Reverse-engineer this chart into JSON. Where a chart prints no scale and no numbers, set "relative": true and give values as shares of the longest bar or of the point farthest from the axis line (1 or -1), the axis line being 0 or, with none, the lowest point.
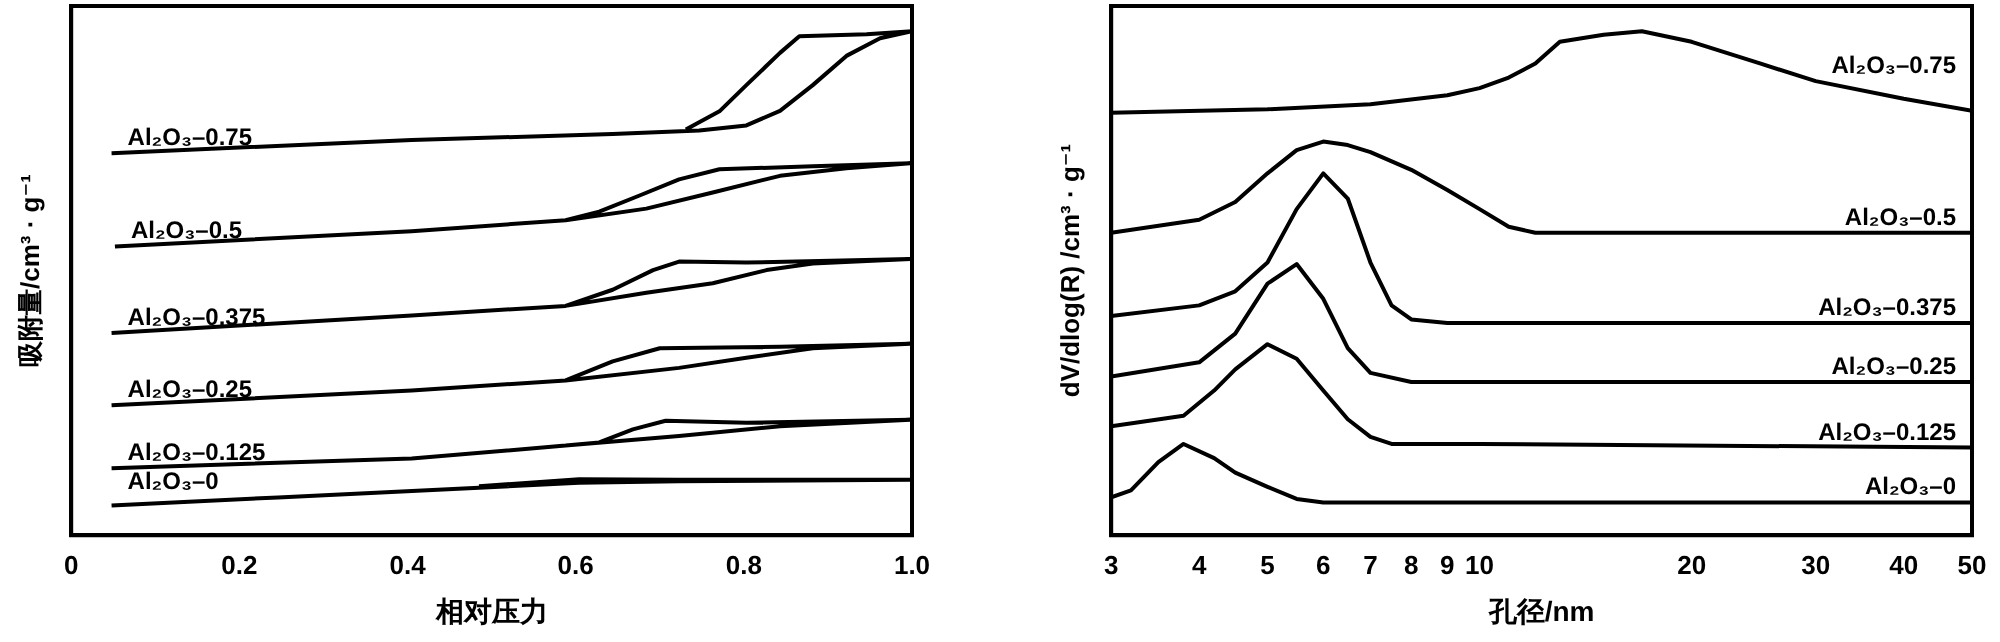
{
  "chart_data": [
    {
      "type": "line",
      "relative": true,
      "xlabel": "相对压力",
      "ylabel": "吸附量/cm³ · g⁻¹",
      "xlim": [
        0,
        1
      ],
      "xticks": [
        0,
        0.2,
        0.4,
        0.6,
        0.8,
        {
          "value": 1,
          "label": "1.0"
        }
      ],
      "grid": false,
      "legend": false,
      "series": [
        {
          "name": "Al₂O₃–0.75",
          "color": "#000000",
          "x": [
            0.048,
            0.405,
            0.644,
            0.747,
            0.803,
            0.843,
            0.882,
            0.922,
            0.962,
            1.0,
            0.946,
            0.866,
            0.843,
            0.803,
            0.771,
            0.731
          ],
          "values": [
            0.758,
            0.784,
            0.796,
            0.803,
            0.813,
            0.842,
            0.893,
            0.951,
            0.986,
            1.0,
            0.994,
            0.99,
            0.957,
            0.893,
            0.841,
            0.805
          ]
        },
        {
          "name": "Al₂O₃–0.5",
          "color": "#000000",
          "x": [
            0.052,
            0.405,
            0.588,
            0.684,
            0.763,
            0.843,
            0.922,
            0.998,
            0.882,
            0.771,
            0.723,
            0.676,
            0.628,
            0.588
          ],
          "values": [
            0.573,
            0.603,
            0.625,
            0.648,
            0.68,
            0.713,
            0.728,
            0.738,
            0.732,
            0.726,
            0.706,
            0.674,
            0.642,
            0.625
          ]
        },
        {
          "name": "Al₂O₃–0.375",
          "color": "#000000",
          "x": [
            0.048,
            0.405,
            0.588,
            0.684,
            0.763,
            0.827,
            0.882,
            0.998,
            0.803,
            0.723,
            0.692,
            0.644,
            0.588
          ],
          "values": [
            0.401,
            0.436,
            0.455,
            0.481,
            0.5,
            0.526,
            0.539,
            0.548,
            0.541,
            0.543,
            0.526,
            0.487,
            0.455
          ]
        },
        {
          "name": "Al₂O₃–0.25",
          "color": "#000000",
          "x": [
            0.048,
            0.405,
            0.588,
            0.723,
            0.803,
            0.882,
            0.998,
            0.843,
            0.7,
            0.644,
            0.588
          ],
          "values": [
            0.258,
            0.287,
            0.307,
            0.332,
            0.352,
            0.371,
            0.38,
            0.374,
            0.371,
            0.345,
            0.307
          ]
        },
        {
          "name": "Al₂O₃–0.125",
          "color": "#000000",
          "x": [
            0.048,
            0.405,
            0.588,
            0.723,
            0.843,
            0.998,
            0.803,
            0.707,
            0.668,
            0.628,
            0.588
          ],
          "values": [
            0.133,
            0.152,
            0.178,
            0.197,
            0.216,
            0.229,
            0.223,
            0.227,
            0.21,
            0.184,
            0.178
          ]
        },
        {
          "name": "Al₂O₃–0",
          "color": "#000000",
          "x": [
            0.048,
            0.246,
            0.485,
            0.604,
            0.723,
            0.998,
            0.723,
            0.604,
            0.485
          ],
          "values": [
            0.059,
            0.075,
            0.094,
            0.104,
            0.107,
            0.11,
            0.11,
            0.111,
            0.097
          ]
        }
      ]
    },
    {
      "type": "line",
      "relative": true,
      "log": "x",
      "xlabel": "孔径/nm",
      "ylabel": "dV/dlog(R) /cm³ · g⁻¹",
      "xlim": [
        3,
        50
      ],
      "xticks": [
        3,
        4,
        5,
        6,
        7,
        8,
        9,
        10,
        20,
        30,
        40,
        50
      ],
      "grid": false,
      "legend": false,
      "series": [
        {
          "name": "Al₂O₃–0.75",
          "color": "#000000",
          "x": [
            3,
            5,
            7,
            9,
            10,
            11,
            12,
            13,
            15,
            17,
            20,
            25,
            30,
            40,
            50
          ],
          "values": [
            0.838,
            0.845,
            0.855,
            0.873,
            0.887,
            0.908,
            0.936,
            0.979,
            0.993,
            1.0,
            0.979,
            0.936,
            0.901,
            0.866,
            0.842
          ]
        },
        {
          "name": "Al₂O₃–0.5",
          "color": "#000000",
          "x": [
            3,
            4,
            4.5,
            5,
            5.5,
            6,
            6.5,
            7,
            8,
            9,
            10,
            11,
            12,
            20,
            50
          ],
          "values": [
            0.6,
            0.626,
            0.661,
            0.718,
            0.764,
            0.781,
            0.774,
            0.76,
            0.725,
            0.685,
            0.647,
            0.612,
            0.6,
            0.6,
            0.6
          ]
        },
        {
          "name": "Al₂O₃–0.375",
          "color": "#000000",
          "x": [
            3,
            4,
            4.5,
            5,
            5.5,
            6,
            6.5,
            7,
            7.5,
            8,
            9,
            50
          ],
          "values": [
            0.435,
            0.456,
            0.484,
            0.541,
            0.647,
            0.718,
            0.668,
            0.541,
            0.456,
            0.428,
            0.421,
            0.421
          ]
        },
        {
          "name": "Al₂O₃–0.25",
          "color": "#000000",
          "x": [
            3,
            4,
            4.5,
            5,
            5.5,
            6,
            6.5,
            7,
            8,
            50
          ],
          "values": [
            0.315,
            0.343,
            0.4,
            0.499,
            0.538,
            0.469,
            0.371,
            0.322,
            0.304,
            0.304
          ]
        },
        {
          "name": "Al₂O₃–0.125",
          "color": "#000000",
          "x": [
            3,
            3.8,
            4.2,
            4.5,
            5,
            5.5,
            6,
            6.5,
            7,
            7.5,
            10,
            50
          ],
          "values": [
            0.216,
            0.237,
            0.287,
            0.329,
            0.379,
            0.35,
            0.287,
            0.23,
            0.195,
            0.181,
            0.181,
            0.174
          ]
        },
        {
          "name": "Al₂O₃–0",
          "color": "#000000",
          "x": [
            3,
            3.2,
            3.5,
            3.8,
            4.2,
            4.5,
            5,
            5.5,
            6,
            50
          ],
          "values": [
            0.075,
            0.089,
            0.145,
            0.181,
            0.153,
            0.124,
            0.096,
            0.072,
            0.065,
            0.065
          ]
        }
      ]
    }
  ]
}
